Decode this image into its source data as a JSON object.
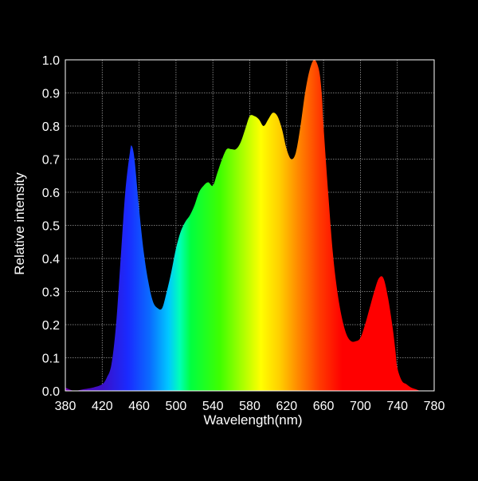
{
  "chart_data": {
    "type": "area",
    "xlabel": "Wavelength(nm)",
    "ylabel": "Relative intensity",
    "xlim": [
      380,
      780
    ],
    "ylim": [
      0,
      1.0
    ],
    "x_ticks": [
      380,
      420,
      460,
      500,
      540,
      580,
      620,
      660,
      700,
      740,
      780
    ],
    "y_ticks": [
      "0.0",
      "0.1",
      "0.2",
      "0.3",
      "0.4",
      "0.5",
      "0.6",
      "0.7",
      "0.8",
      "0.9",
      "1.0"
    ],
    "grid": true,
    "fill": "visible-spectrum-gradient",
    "series": [
      {
        "x": [
          380,
          390,
          400,
          410,
          420,
          425,
          430,
          435,
          440,
          445,
          450,
          452,
          455,
          460,
          465,
          470,
          475,
          480,
          485,
          490,
          495,
          500,
          505,
          510,
          515,
          520,
          525,
          530,
          535,
          540,
          545,
          550,
          555,
          560,
          565,
          570,
          575,
          580,
          585,
          590,
          595,
          600,
          605,
          610,
          615,
          620,
          625,
          630,
          635,
          640,
          645,
          650,
          655,
          658,
          660,
          665,
          670,
          675,
          680,
          685,
          690,
          695,
          700,
          705,
          710,
          715,
          720,
          725,
          730,
          735,
          738,
          740,
          745,
          750,
          755,
          760,
          765,
          770,
          775,
          780
        ],
        "values": [
          0.01,
          0.0,
          0.005,
          0.01,
          0.02,
          0.04,
          0.08,
          0.2,
          0.4,
          0.6,
          0.72,
          0.74,
          0.7,
          0.55,
          0.42,
          0.33,
          0.27,
          0.25,
          0.25,
          0.3,
          0.36,
          0.43,
          0.48,
          0.51,
          0.53,
          0.56,
          0.6,
          0.62,
          0.63,
          0.62,
          0.66,
          0.7,
          0.73,
          0.73,
          0.73,
          0.75,
          0.79,
          0.83,
          0.83,
          0.82,
          0.8,
          0.82,
          0.84,
          0.83,
          0.79,
          0.73,
          0.7,
          0.72,
          0.8,
          0.9,
          0.97,
          1.0,
          0.97,
          0.9,
          0.8,
          0.6,
          0.42,
          0.3,
          0.22,
          0.17,
          0.15,
          0.15,
          0.16,
          0.2,
          0.25,
          0.3,
          0.34,
          0.34,
          0.28,
          0.19,
          0.12,
          0.07,
          0.03,
          0.02,
          0.01,
          0.005,
          0.0,
          0.0,
          0.0,
          0.0
        ]
      }
    ]
  }
}
